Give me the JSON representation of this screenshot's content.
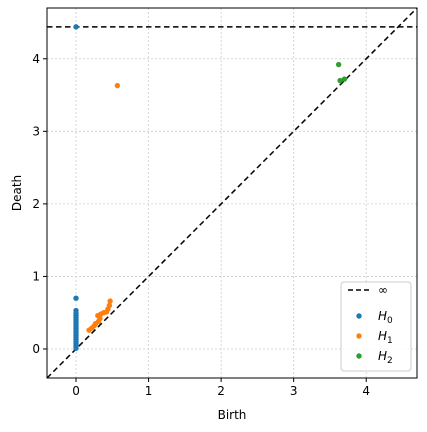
{
  "chart_data": {
    "type": "scatter",
    "xlabel": "Birth",
    "ylabel": "Death",
    "xlim": [
      -0.4,
      4.7
    ],
    "ylim": [
      -0.4,
      4.7
    ],
    "xticks": [
      "0",
      "1",
      "2",
      "3",
      "4"
    ],
    "yticks": [
      "0",
      "1",
      "2",
      "3",
      "4"
    ],
    "grid": true,
    "legend_position": "bottom-right",
    "infinity_level": 4.44,
    "infinity_label": "∞",
    "series": [
      {
        "name": "H0",
        "name_base": "H",
        "name_sub": "0",
        "color": "#1f77b4",
        "points": [
          [
            0,
            4.44
          ],
          [
            0,
            0.7
          ],
          [
            0,
            0.53
          ],
          [
            0,
            0.49
          ],
          [
            0,
            0.46
          ],
          [
            0,
            0.43
          ],
          [
            0,
            0.4
          ],
          [
            0,
            0.37
          ],
          [
            0,
            0.34
          ],
          [
            0,
            0.31
          ],
          [
            0,
            0.28
          ],
          [
            0,
            0.25
          ],
          [
            0,
            0.22
          ],
          [
            0,
            0.19
          ],
          [
            0,
            0.16
          ],
          [
            0,
            0.13
          ],
          [
            0,
            0.1
          ],
          [
            0,
            0.07
          ],
          [
            0,
            0.04
          ],
          [
            0,
            0.01
          ]
        ]
      },
      {
        "name": "H1",
        "name_base": "H",
        "name_sub": "1",
        "color": "#ff7f0e",
        "points": [
          [
            0.57,
            3.63
          ],
          [
            0.47,
            0.66
          ],
          [
            0.46,
            0.6
          ],
          [
            0.44,
            0.55
          ],
          [
            0.42,
            0.51
          ],
          [
            0.38,
            0.5
          ],
          [
            0.34,
            0.48
          ],
          [
            0.3,
            0.46
          ],
          [
            0.33,
            0.42
          ],
          [
            0.31,
            0.38
          ],
          [
            0.27,
            0.35
          ],
          [
            0.25,
            0.32
          ],
          [
            0.22,
            0.29
          ],
          [
            0.18,
            0.26
          ]
        ]
      },
      {
        "name": "H2",
        "name_base": "H",
        "name_sub": "2",
        "color": "#2ca02c",
        "points": [
          [
            3.62,
            3.92
          ],
          [
            3.64,
            3.7
          ],
          [
            3.7,
            3.72
          ]
        ]
      }
    ]
  }
}
